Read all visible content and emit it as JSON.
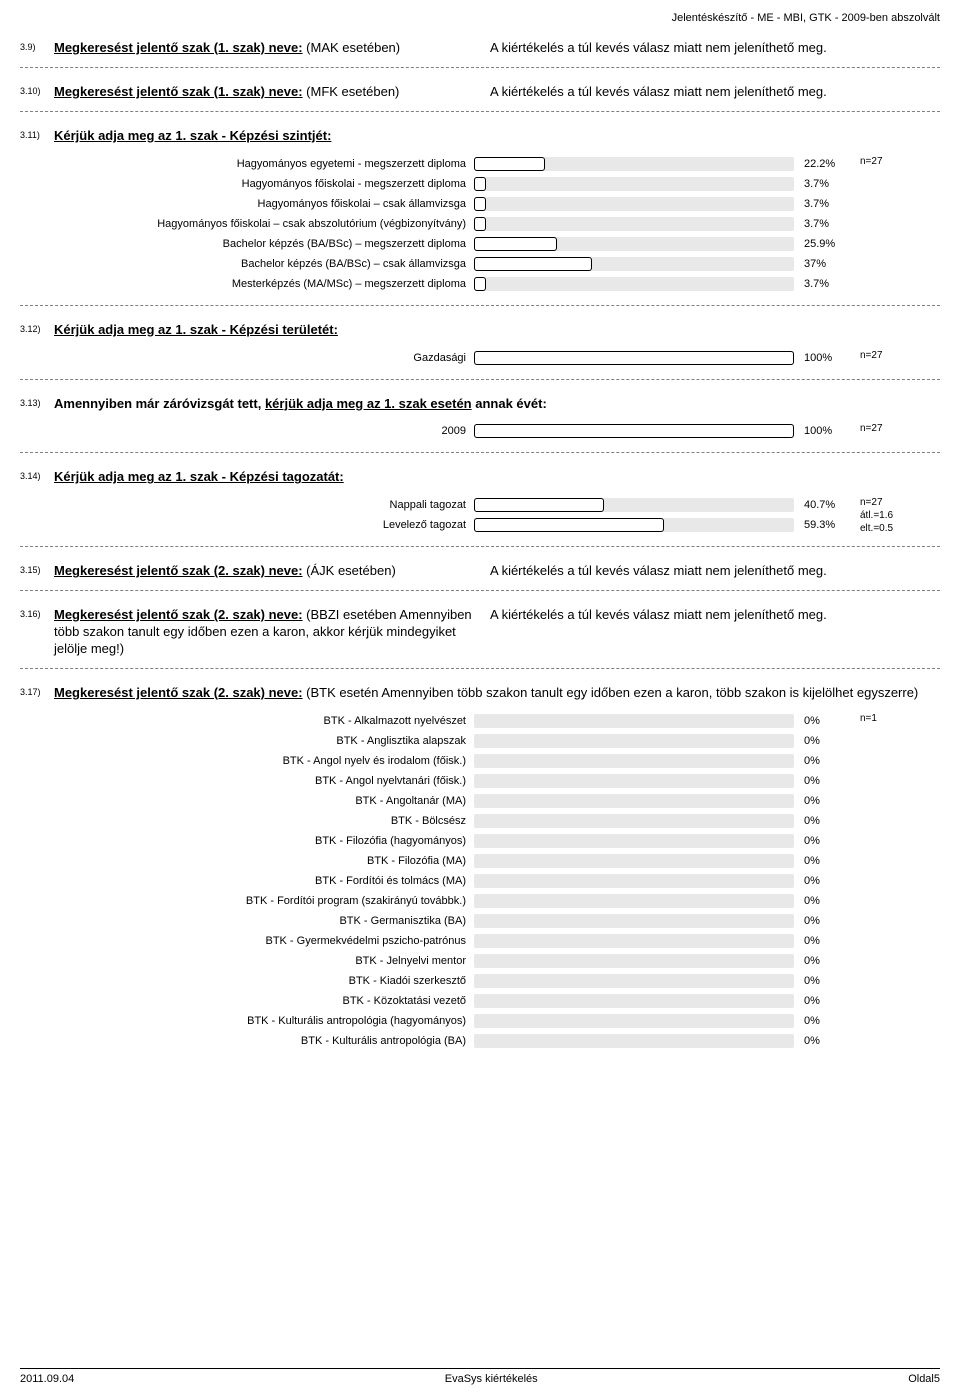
{
  "header": "Jelentéskészítő - ME - MBI, GTK -  2009-ben abszolvált",
  "q9": {
    "num": "3.9)",
    "bold": "Megkeresést jelentő szak (1. szak) neve:",
    "plain": " (MAK esetében)",
    "right": "A kiértékelés a túl kevés válasz miatt nem jeleníthető meg."
  },
  "q10": {
    "num": "3.10)",
    "bold": "Megkeresést jelentő szak (1. szak) neve:",
    "plain": " (MFK esetében)",
    "right": "A kiértékelés a túl kevés válasz miatt nem jeleníthető meg."
  },
  "q11": {
    "num": "3.11)",
    "title": "Kérjük adja meg az 1. szak - Képzési szintjét:",
    "n": "n=27",
    "bars": [
      {
        "label": "Hagyományos egyetemi  - megszerzett diploma",
        "pct": 22.2,
        "pct_label": "22.2%"
      },
      {
        "label": "Hagyományos főiskolai - megszerzett diploma",
        "pct": 3.7,
        "pct_label": "3.7%"
      },
      {
        "label": "Hagyományos főiskolai – csak államvizsga",
        "pct": 3.7,
        "pct_label": "3.7%"
      },
      {
        "label": "Hagyományos főiskolai – csak abszolutórium (végbizonyítvány)",
        "pct": 3.7,
        "pct_label": "3.7%"
      },
      {
        "label": "Bachelor képzés (BA/BSc) – megszerzett diploma",
        "pct": 25.9,
        "pct_label": "25.9%"
      },
      {
        "label": "Bachelor képzés (BA/BSc) – csak államvizsga",
        "pct": 37,
        "pct_label": "37%"
      },
      {
        "label": "Mesterképzés (MA/MSc) – megszerzett diploma",
        "pct": 3.7,
        "pct_label": "3.7%"
      }
    ]
  },
  "q12": {
    "num": "3.12)",
    "title": "Kérjük adja meg az 1. szak - Képzési területét:",
    "n": "n=27",
    "bars": [
      {
        "label": "Gazdasági",
        "pct": 100,
        "pct_label": "100%"
      }
    ]
  },
  "q13": {
    "num": "3.13)",
    "title_pre": "Amennyiben már záróvizsgát tett, ",
    "title_u": "kérjük adja meg az 1. szak esetén",
    "title_post": " annak évét:",
    "n": "n=27",
    "bars": [
      {
        "label": "2009",
        "pct": 100,
        "pct_label": "100%"
      }
    ]
  },
  "q14": {
    "num": "3.14)",
    "title": "Kérjük adja meg az 1. szak - Képzési tagozatát:",
    "info": [
      "n=27",
      "átl.=1.6",
      "elt.=0.5"
    ],
    "bars": [
      {
        "label": "Nappali tagozat",
        "pct": 40.7,
        "pct_label": "40.7%"
      },
      {
        "label": "Levelező tagozat",
        "pct": 59.3,
        "pct_label": "59.3%"
      }
    ]
  },
  "q15": {
    "num": "3.15)",
    "bold": "Megkeresést jelentő szak (2. szak) neve:",
    "plain": " (ÁJK esetében)",
    "right": "A kiértékelés a túl kevés válasz miatt nem jeleníthető meg."
  },
  "q16": {
    "num": "3.16)",
    "bold": "Megkeresést jelentő szak (2. szak) neve:",
    "plain": " (BBZI esetében Amennyiben több szakon tanult egy időben ezen a karon, akkor kérjük mindegyiket jelölje meg!)",
    "right": "A kiértékelés a túl kevés válasz miatt nem jeleníthető meg."
  },
  "q17": {
    "num": "3.17)",
    "bold": "Megkeresést jelentő szak (2. szak) neve:",
    "plain": " (BTK esetén Amennyiben több szakon tanult egy időben ezen a karon, több szakon is kijelölhet egyszerre)",
    "n": "n=1",
    "bars": [
      {
        "label": "BTK - Alkalmazott nyelvészet",
        "pct": 0,
        "pct_label": "0%"
      },
      {
        "label": "BTK - Anglisztika alapszak",
        "pct": 0,
        "pct_label": "0%"
      },
      {
        "label": "BTK - Angol nyelv és irodalom (főisk.)",
        "pct": 0,
        "pct_label": "0%"
      },
      {
        "label": "BTK - Angol nyelvtanári (főisk.)",
        "pct": 0,
        "pct_label": "0%"
      },
      {
        "label": "BTK - Angoltanár (MA)",
        "pct": 0,
        "pct_label": "0%"
      },
      {
        "label": "BTK - Bölcsész",
        "pct": 0,
        "pct_label": "0%"
      },
      {
        "label": "BTK - Filozófia (hagyományos)",
        "pct": 0,
        "pct_label": "0%"
      },
      {
        "label": "BTK - Filozófia (MA)",
        "pct": 0,
        "pct_label": "0%"
      },
      {
        "label": "BTK - Fordítói és tolmács (MA)",
        "pct": 0,
        "pct_label": "0%"
      },
      {
        "label": "BTK - Fordítói program (szakirányú továbbk.)",
        "pct": 0,
        "pct_label": "0%"
      },
      {
        "label": "BTK - Germanisztika (BA)",
        "pct": 0,
        "pct_label": "0%"
      },
      {
        "label": "BTK - Gyermekvédelmi pszicho-patrónus",
        "pct": 0,
        "pct_label": "0%"
      },
      {
        "label": "BTK - Jelnyelvi mentor",
        "pct": 0,
        "pct_label": "0%"
      },
      {
        "label": "BTK - Kiadói szerkesztő",
        "pct": 0,
        "pct_label": "0%"
      },
      {
        "label": "BTK - Közoktatási vezető",
        "pct": 0,
        "pct_label": "0%"
      },
      {
        "label": "BTK - Kulturális antropológia (hagyományos)",
        "pct": 0,
        "pct_label": "0%"
      },
      {
        "label": "BTK - Kulturális antropológia (BA)",
        "pct": 0,
        "pct_label": "0%"
      }
    ]
  },
  "footer": {
    "left": "2011.09.04",
    "center": "EvaSys kiértékelés",
    "right": "Oldal5"
  }
}
